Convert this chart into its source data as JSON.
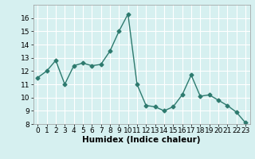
{
  "x": [
    0,
    1,
    2,
    3,
    4,
    5,
    6,
    7,
    8,
    9,
    10,
    11,
    12,
    13,
    14,
    15,
    16,
    17,
    18,
    19,
    20,
    21,
    22,
    23
  ],
  "y": [
    11.5,
    12.0,
    12.8,
    11.0,
    12.4,
    12.6,
    12.4,
    12.5,
    13.5,
    15.0,
    16.3,
    11.0,
    9.4,
    9.3,
    9.0,
    9.3,
    10.2,
    11.7,
    10.1,
    10.2,
    9.8,
    9.4,
    8.9,
    8.1
  ],
  "line_color": "#2d7a6e",
  "marker": "D",
  "marker_size": 2.5,
  "line_width": 1.0,
  "xlabel": "Humidex (Indice chaleur)",
  "ylim": [
    8,
    17
  ],
  "xlim": [
    -0.5,
    23.5
  ],
  "yticks": [
    8,
    9,
    10,
    11,
    12,
    13,
    14,
    15,
    16
  ],
  "xticks": [
    0,
    1,
    2,
    3,
    4,
    5,
    6,
    7,
    8,
    9,
    10,
    11,
    12,
    13,
    14,
    15,
    16,
    17,
    18,
    19,
    20,
    21,
    22,
    23
  ],
  "background_color": "#d6f0f0",
  "grid_color": "#ffffff",
  "tick_label_fontsize": 6.5,
  "xlabel_fontsize": 7.5
}
